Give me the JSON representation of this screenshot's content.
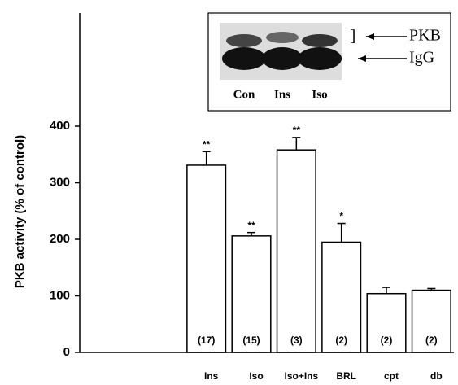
{
  "chart_data": {
    "type": "bar",
    "y_label": "PKB activity (% of control)",
    "categories": [
      "Ins",
      "Iso",
      "Iso+Ins",
      "BRL",
      "cpt",
      "db"
    ],
    "values": [
      331,
      206,
      358,
      195,
      104,
      110
    ],
    "errors": [
      24,
      6,
      22,
      33,
      11,
      3
    ],
    "annotations": [
      "**",
      "**",
      "**",
      "*",
      null,
      null
    ],
    "n_labels": [
      "(17)",
      "(15)",
      "(3)",
      "(2)",
      "(2)",
      "(2)"
    ],
    "color": "#ffffff",
    "ylim": [
      0,
      600
    ],
    "yticks": [
      0,
      100,
      200,
      300,
      400
    ],
    "inset": {
      "lanes": [
        "Con",
        "Ins",
        "Iso"
      ],
      "bracket": "]",
      "bands": [
        "PKB",
        "IgG"
      ]
    }
  }
}
